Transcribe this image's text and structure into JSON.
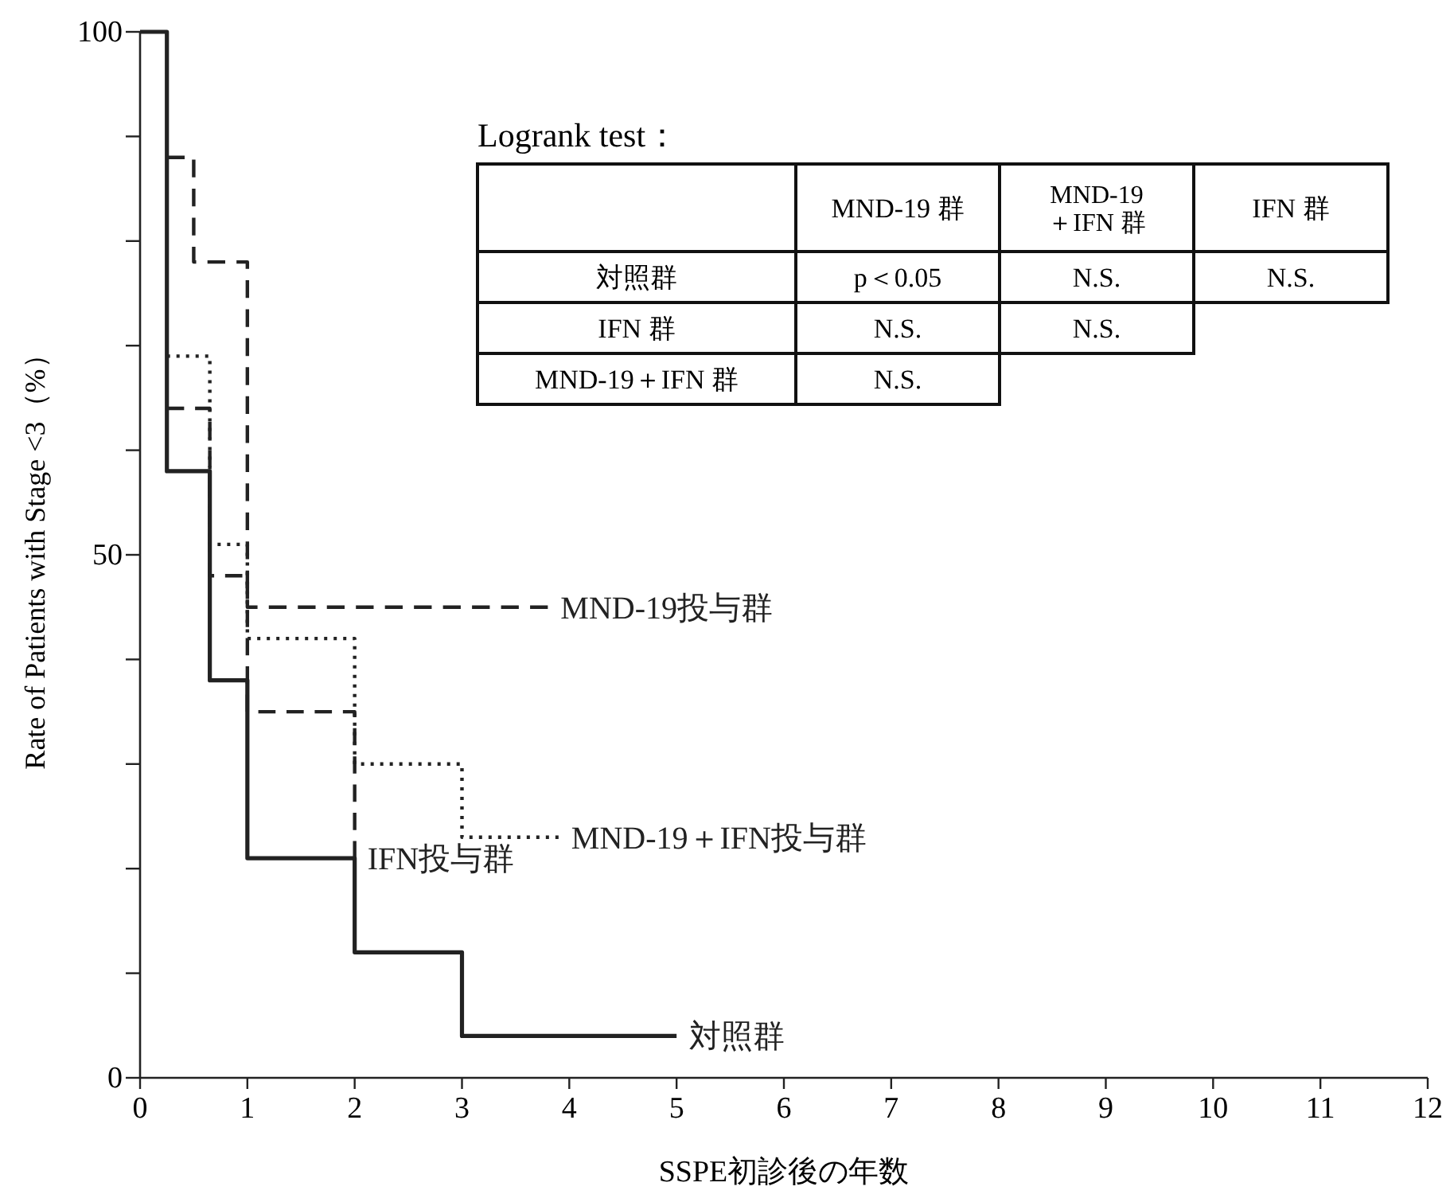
{
  "chart_data": {
    "type": "step",
    "xlabel": "SSPE初診後の年数",
    "ylabel": "Rate of Patients with Stage <3（%）",
    "xlim": [
      0,
      12
    ],
    "xticks": [
      0,
      1,
      2,
      3,
      4,
      5,
      6,
      7,
      8,
      9,
      10,
      11,
      12
    ],
    "ylim": [
      0,
      100
    ],
    "yticks": [
      0,
      {
        "value": 10,
        "label": null
      },
      {
        "value": 20,
        "label": null
      },
      {
        "value": 30,
        "label": null
      },
      {
        "value": 40,
        "label": null
      },
      50,
      {
        "value": 60,
        "label": null
      },
      {
        "value": 70,
        "label": null
      },
      {
        "value": 80,
        "label": null
      },
      {
        "value": 90,
        "label": null
      },
      100
    ],
    "grid": false,
    "legend": false,
    "marker": "none",
    "series": [
      {
        "name": "対照群",
        "color": "#222222",
        "line_style": "solid",
        "x": [
          0,
          0.25,
          0.65,
          1,
          2,
          3,
          5
        ],
        "values": [
          100,
          58,
          38,
          21,
          12,
          4,
          4
        ]
      },
      {
        "name": "MND-19投与群",
        "color": "#222222",
        "line_style": "dashed",
        "x": [
          0.25,
          0.5,
          1,
          3.8
        ],
        "values": [
          88,
          78,
          45,
          45
        ]
      },
      {
        "name": "IFN投与群",
        "color": "#222222",
        "line_style": "dashed",
        "x": [
          0.25,
          0.65,
          1,
          2
        ],
        "values": [
          64,
          48,
          35,
          21
        ]
      },
      {
        "name": "MND-19＋IFN投与群",
        "color": "#222222",
        "line_style": "dotted",
        "x": [
          0.25,
          0.65,
          1,
          2,
          3,
          3.9
        ],
        "values": [
          69,
          51,
          42,
          30,
          23,
          23
        ]
      }
    ],
    "annotations": [
      "Logrank test：",
      "MND-19 群",
      "MND-19\n＋IFN 群",
      "IFN 群",
      "対照群",
      "p＜0.05",
      "N.S.",
      "N.S.",
      "IFN 群",
      "N.S.",
      "N.S.",
      "MND-19＋IFN 群",
      "N.S."
    ]
  }
}
